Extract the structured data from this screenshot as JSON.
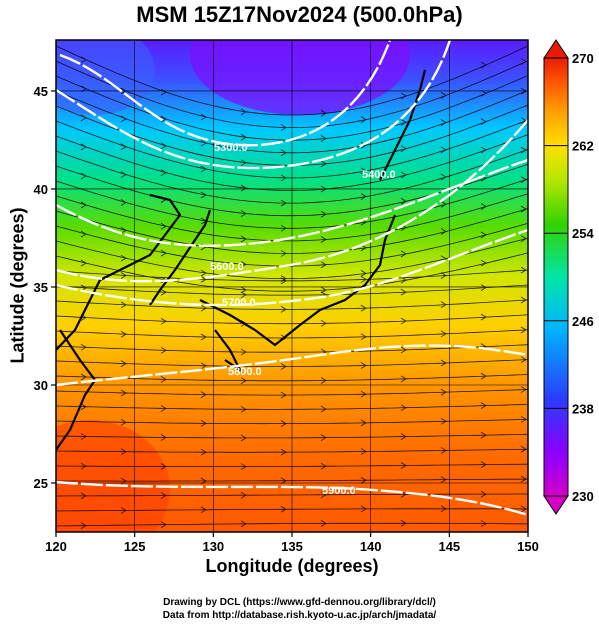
{
  "title": "MSM 15Z17Nov2024 (500.0hPa)",
  "xlabel": "Longitude (degrees)",
  "ylabel": "Latitude  (degrees)",
  "credits": {
    "line1": "Drawing by DCL (https://www.gfd-dennou.org/library/dcl/)",
    "line2": "Data from http://database.rish.kyoto-u.ac.jp/arch/jmadata/"
  },
  "map": {
    "lon_range": [
      120,
      150
    ],
    "lat_range": [
      22.5,
      47.6
    ],
    "lon_ticks": [
      "120",
      "125",
      "130",
      "135",
      "140",
      "145",
      "150"
    ],
    "lat_ticks": [
      "25",
      "30",
      "35",
      "40",
      "45"
    ],
    "colorbar": {
      "min": 230,
      "max": 270,
      "tick_labels": [
        "270",
        "262",
        "254",
        "246",
        "238",
        "230"
      ],
      "colors": [
        "#d400c8",
        "#8a00ff",
        "#2a3cff",
        "#00b4ff",
        "#00e6a8",
        "#32d200",
        "#b4e600",
        "#ffe000",
        "#ff9c00",
        "#ff5000",
        "#e81c00"
      ]
    },
    "contour_labels": [
      "5300.0",
      "5400.0",
      "5500.0",
      "5600.0",
      "5700.0",
      "5800.0",
      "5900.0"
    ],
    "contour_color": "#ffffff",
    "streamline_color": "#000000",
    "coastline_color": "#000000"
  }
}
